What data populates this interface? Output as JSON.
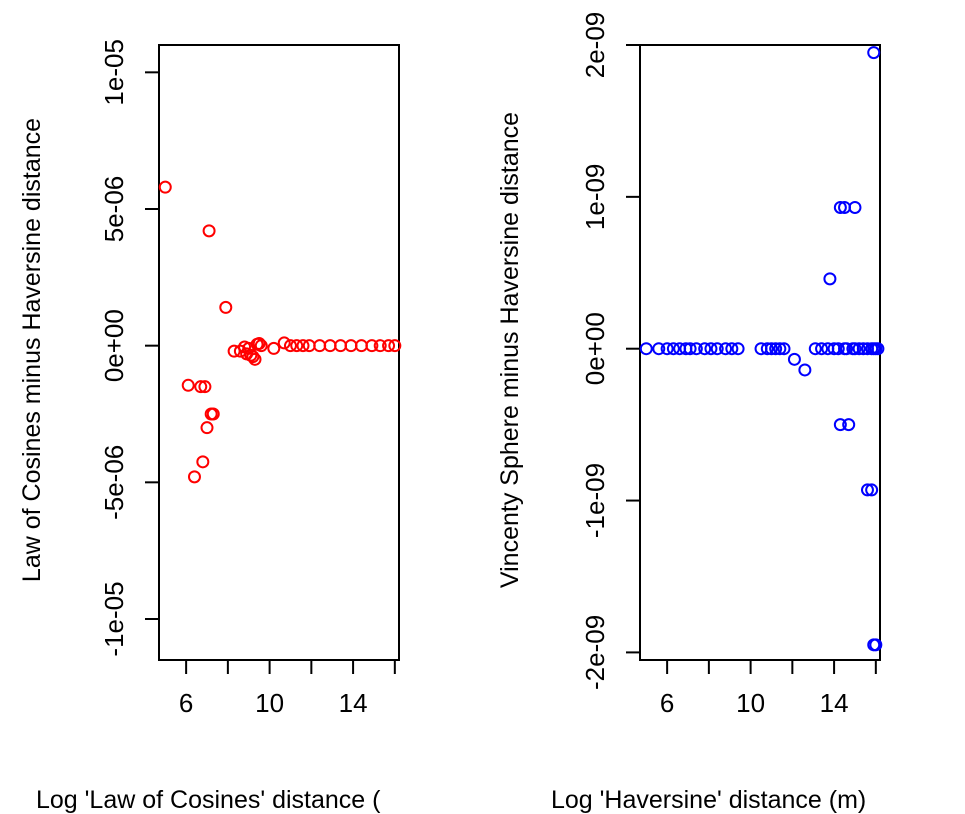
{
  "chart_data": [
    {
      "type": "scatter",
      "xlabel": "Log 'Law of Cosines' distance (",
      "ylabel": "Law of Cosines minus Haversine distance",
      "xlim": [
        4.7,
        16.2
      ],
      "ylim": [
        -1.15e-05,
        1.1e-05
      ],
      "x_ticks": [
        6,
        8,
        10,
        12,
        14,
        16
      ],
      "x_tick_labels": [
        "6",
        "",
        "10",
        "",
        "14",
        ""
      ],
      "y_ticks": [
        -1e-05,
        -5e-06,
        0,
        5e-06,
        1e-05
      ],
      "y_tick_labels": [
        "-1e-05",
        "-5e-06",
        "0e+00",
        "5e-06",
        "1e-05"
      ],
      "grid": false,
      "marker": "open-circle",
      "color": "#ff0000",
      "x": [
        5.0,
        6.1,
        6.4,
        6.7,
        6.8,
        6.9,
        7.0,
        7.1,
        7.2,
        7.3,
        7.9,
        8.3,
        8.6,
        8.8,
        8.9,
        9.0,
        9.1,
        9.2,
        9.3,
        9.4,
        9.5,
        9.6,
        10.2,
        10.7,
        11.0,
        11.3,
        11.6,
        11.9,
        12.4,
        12.9,
        13.4,
        13.9,
        14.4,
        14.9,
        15.3,
        15.7,
        16.0
      ],
      "y": [
        5.8e-06,
        -1.45e-06,
        -4.8e-06,
        -1.5e-06,
        -4.25e-06,
        -1.5e-06,
        -3e-06,
        4.2e-06,
        -2.5e-06,
        -2.5e-06,
        1.4e-06,
        -2e-07,
        -2e-07,
        -5e-08,
        -3e-07,
        -1e-07,
        -3.5e-07,
        -4e-07,
        -5e-07,
        5e-08,
        8e-08,
        0,
        -1e-07,
        1e-07,
        0,
        0,
        0,
        0,
        0,
        0,
        0,
        0,
        0,
        0,
        0,
        0,
        0
      ]
    },
    {
      "type": "scatter",
      "xlabel": "Log 'Haversine' distance (m)",
      "ylabel": "Vincenty Sphere minus Haversine distance",
      "xlim": [
        4.7,
        16.2
      ],
      "ylim": [
        -2.05e-09,
        2e-09
      ],
      "x_ticks": [
        6,
        8,
        10,
        12,
        14,
        16
      ],
      "x_tick_labels": [
        "6",
        "",
        "10",
        "",
        "14",
        ""
      ],
      "y_ticks": [
        -2e-09,
        -1e-09,
        0,
        1e-09,
        2e-09
      ],
      "y_tick_labels": [
        "-2e-09",
        "-1e-09",
        "0e+00",
        "1e-09",
        "2e-09"
      ],
      "grid": false,
      "marker": "open-circle",
      "color": "#0000ff",
      "x": [
        5.0,
        5.6,
        6.0,
        6.3,
        6.6,
        6.9,
        7.1,
        7.4,
        7.8,
        8.1,
        8.4,
        8.8,
        9.1,
        9.4,
        10.5,
        10.8,
        11.0,
        11.2,
        11.4,
        11.6,
        12.1,
        12.6,
        13.1,
        13.4,
        13.7,
        13.8,
        14.0,
        14.2,
        14.5,
        14.6,
        14.9,
        15.0,
        15.2,
        15.4,
        15.6,
        15.8,
        15.9,
        16.0,
        16.1,
        14.3,
        14.7,
        14.3,
        14.5,
        15.0,
        15.6,
        15.8,
        15.9,
        16.0,
        15.9
      ],
      "y": [
        0,
        0,
        0,
        0,
        0,
        0,
        0,
        0,
        0,
        0,
        0,
        0,
        0,
        0,
        0,
        0,
        0,
        0,
        0,
        0,
        -7e-11,
        -1.4e-10,
        0,
        0,
        0,
        4.6e-10,
        0,
        0,
        0,
        0,
        0,
        0,
        0,
        0,
        0,
        0,
        0,
        0,
        0,
        -5e-10,
        -5e-10,
        9.3e-10,
        9.3e-10,
        9.3e-10,
        -9.3e-10,
        -9.3e-10,
        -1.95e-09,
        -1.95e-09,
        1.95e-09
      ]
    }
  ]
}
